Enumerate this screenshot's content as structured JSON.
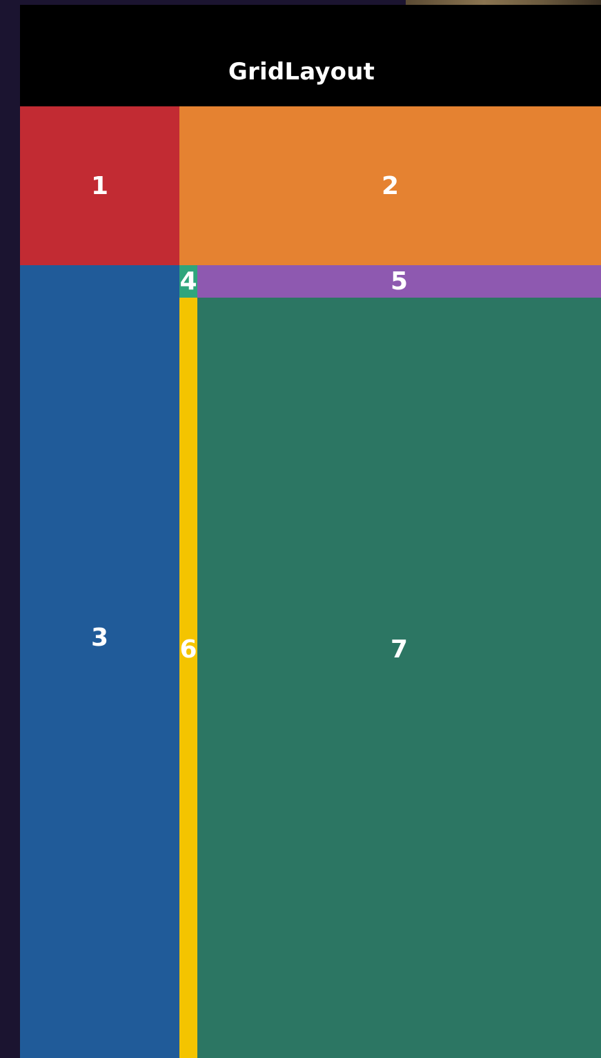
{
  "nav": {
    "title": "GridLayout"
  },
  "cells": [
    {
      "id": "1",
      "label": "1",
      "color": "#c22b33"
    },
    {
      "id": "2",
      "label": "2",
      "color": "#e58231"
    },
    {
      "id": "3",
      "label": "3",
      "color": "#205b99"
    },
    {
      "id": "4",
      "label": "4",
      "color": "#2fa57c"
    },
    {
      "id": "5",
      "label": "5",
      "color": "#8e59b0"
    },
    {
      "id": "6",
      "label": "6",
      "color": "#f4c400"
    },
    {
      "id": "7",
      "label": "7",
      "color": "#2c7663"
    }
  ],
  "colors": {
    "background": "#1b1430",
    "nav_bar": "#000000",
    "text": "#ffffff"
  }
}
